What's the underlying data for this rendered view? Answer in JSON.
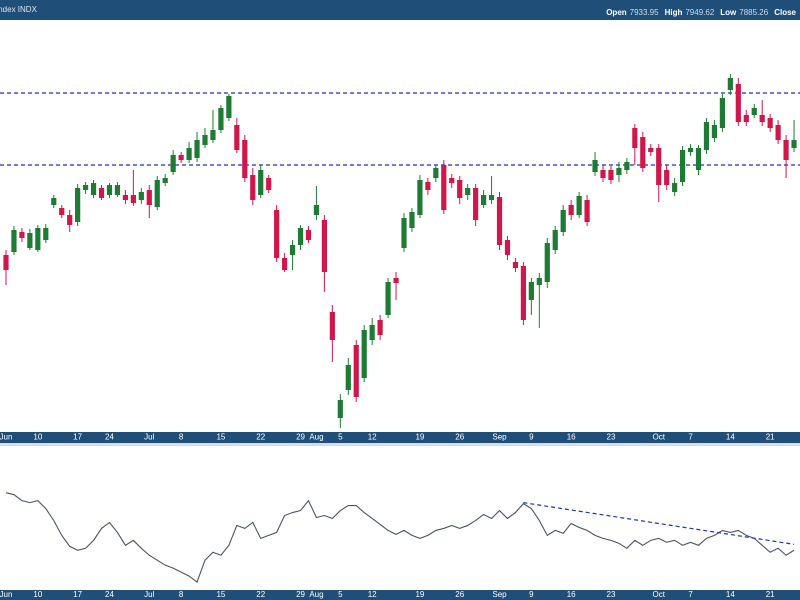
{
  "header": {
    "symbol": "Index INDX",
    "quote": [
      {
        "label": "Open",
        "value": 7933.95
      },
      {
        "label": "High",
        "value": 7949.62
      },
      {
        "label": "Low",
        "value": 7885.26
      },
      {
        "label": "Close"
      }
    ]
  },
  "chart_data": [
    {
      "type": "candlestick",
      "up_color": "#1e7b34",
      "down_color": "#d0174b",
      "line_color": "#1f2fbf",
      "categories": [
        "Jun",
        null,
        null,
        null,
        "10",
        null,
        null,
        null,
        null,
        "17",
        null,
        null,
        null,
        "24",
        null,
        null,
        null,
        null,
        "Jul",
        null,
        null,
        null,
        "8",
        null,
        null,
        null,
        null,
        "15",
        null,
        null,
        null,
        null,
        "22",
        null,
        null,
        null,
        null,
        "29",
        null,
        "Aug",
        null,
        null,
        "5",
        null,
        null,
        null,
        "12",
        null,
        null,
        null,
        null,
        null,
        "19",
        null,
        null,
        null,
        null,
        "26",
        null,
        null,
        null,
        null,
        "Sep",
        null,
        null,
        null,
        "9",
        null,
        null,
        null,
        null,
        "16",
        null,
        null,
        null,
        null,
        "23",
        null,
        null,
        null,
        null,
        null,
        "Oct",
        null,
        null,
        null,
        "7",
        null,
        null,
        null,
        null,
        "14",
        null,
        null,
        null,
        null,
        "21",
        null,
        null,
        null
      ],
      "open": [
        7495,
        7504,
        7564,
        7516,
        7510,
        7540,
        7645,
        7636,
        7615,
        7594,
        7690,
        7675,
        7696,
        7675,
        7675,
        7675,
        7675,
        7660,
        7690,
        7639,
        7711,
        7744,
        7795,
        7780,
        7786,
        7825,
        7840,
        7870,
        7906,
        7885,
        7840,
        7735,
        7675,
        7726,
        7630,
        7486,
        7495,
        7525,
        7570,
        7615,
        7600,
        7324,
        7006,
        7090,
        7225,
        7126,
        7240,
        7300,
        7315,
        7426,
        7516,
        7576,
        7615,
        7714,
        7726,
        7765,
        7726,
        7720,
        7675,
        7696,
        7645,
        7660,
        7669,
        7540,
        7474,
        7462,
        7360,
        7405,
        7414,
        7510,
        7564,
        7645,
        7615,
        7660,
        7744,
        7750,
        7750,
        7735,
        7750,
        7876,
        7849,
        7816,
        7816,
        7750,
        7684,
        7714,
        7804,
        7750,
        7810,
        7846,
        7876,
        7990,
        8008,
        7915,
        7915,
        7915,
        7906,
        7885,
        7840,
        7816
      ],
      "high": [
        7510,
        7582,
        7576,
        7573,
        7585,
        7588,
        7675,
        7645,
        7630,
        7708,
        7714,
        7720,
        7705,
        7711,
        7714,
        7690,
        7750,
        7696,
        7705,
        7732,
        7738,
        7810,
        7804,
        7834,
        7864,
        7876,
        7930,
        7945,
        7978,
        7906,
        7855,
        7756,
        7765,
        7735,
        7645,
        7501,
        7540,
        7585,
        7582,
        7702,
        7615,
        7345,
        7078,
        7186,
        7240,
        7285,
        7306,
        7315,
        7426,
        7444,
        7621,
        7636,
        7735,
        7726,
        7765,
        7780,
        7738,
        7732,
        7708,
        7708,
        7690,
        7732,
        7684,
        7552,
        7486,
        7474,
        7426,
        7441,
        7546,
        7582,
        7645,
        7660,
        7684,
        7675,
        7804,
        7765,
        7762,
        7774,
        7786,
        7888,
        7864,
        7828,
        7828,
        7765,
        7726,
        7822,
        7828,
        7825,
        7906,
        7900,
        7978,
        8038,
        8026,
        7930,
        7948,
        7960,
        7918,
        7900,
        7855,
        7900
      ],
      "low": [
        7405,
        7495,
        7534,
        7510,
        7504,
        7531,
        7636,
        7606,
        7564,
        7582,
        7678,
        7666,
        7660,
        7666,
        7669,
        7648,
        7642,
        7648,
        7606,
        7630,
        7702,
        7735,
        7771,
        7771,
        7774,
        7816,
        7831,
        7861,
        7897,
        7801,
        7714,
        7645,
        7666,
        7681,
        7474,
        7444,
        7450,
        7510,
        7531,
        7600,
        7384,
        7174,
        6976,
        7075,
        7054,
        7114,
        7225,
        7240,
        7306,
        7360,
        7504,
        7564,
        7606,
        7675,
        7714,
        7618,
        7696,
        7648,
        7660,
        7582,
        7636,
        7648,
        7510,
        7480,
        7444,
        7285,
        7315,
        7276,
        7396,
        7498,
        7552,
        7600,
        7606,
        7582,
        7732,
        7714,
        7708,
        7714,
        7738,
        7765,
        7744,
        7792,
        7654,
        7690,
        7672,
        7702,
        7792,
        7735,
        7798,
        7834,
        7864,
        7975,
        7882,
        7882,
        7906,
        7882,
        7864,
        7828,
        7726,
        7804
      ],
      "close": [
        7450,
        7570,
        7546,
        7561,
        7576,
        7576,
        7666,
        7615,
        7585,
        7696,
        7705,
        7711,
        7666,
        7705,
        7705,
        7660,
        7651,
        7684,
        7645,
        7720,
        7726,
        7795,
        7780,
        7816,
        7840,
        7855,
        7870,
        7936,
        7972,
        7810,
        7726,
        7660,
        7750,
        7690,
        7486,
        7450,
        7525,
        7576,
        7540,
        7645,
        7444,
        7240,
        7060,
        7165,
        7069,
        7270,
        7285,
        7255,
        7414,
        7411,
        7606,
        7624,
        7720,
        7690,
        7756,
        7630,
        7711,
        7666,
        7696,
        7600,
        7675,
        7675,
        7525,
        7495,
        7456,
        7300,
        7414,
        7426,
        7531,
        7570,
        7630,
        7615,
        7672,
        7594,
        7780,
        7726,
        7720,
        7756,
        7774,
        7816,
        7756,
        7804,
        7705,
        7705,
        7711,
        7810,
        7816,
        7816,
        7894,
        7885,
        7966,
        8026,
        7894,
        7894,
        7936,
        7894,
        7876,
        7840,
        7780,
        7840
      ],
      "reference_lines": [
        7981,
        7765
      ],
      "ylim": [
        6964,
        8200
      ]
    },
    {
      "type": "line",
      "color": "#4a5563",
      "trend_color": "#1f2fbf",
      "categories": [
        "Jun",
        null,
        null,
        null,
        "10",
        null,
        null,
        null,
        null,
        "17",
        null,
        null,
        null,
        "24",
        null,
        null,
        null,
        null,
        "Jul",
        null,
        null,
        null,
        "8",
        null,
        null,
        null,
        null,
        "15",
        null,
        null,
        null,
        null,
        "22",
        null,
        null,
        null,
        null,
        "29",
        null,
        "Aug",
        null,
        null,
        "5",
        null,
        null,
        null,
        "12",
        null,
        null,
        null,
        null,
        null,
        "19",
        null,
        null,
        null,
        null,
        "26",
        null,
        null,
        null,
        null,
        "Sep",
        null,
        null,
        null,
        "9",
        null,
        null,
        null,
        null,
        "16",
        null,
        null,
        null,
        null,
        "23",
        null,
        null,
        null,
        null,
        null,
        "Oct",
        null,
        null,
        null,
        "7",
        null,
        null,
        null,
        null,
        "14",
        null,
        null,
        null,
        null,
        "21",
        null,
        null,
        null
      ],
      "values": [
        98,
        96,
        90,
        88,
        90,
        82,
        70,
        55,
        44,
        40,
        42,
        50,
        62,
        68,
        58,
        45,
        50,
        42,
        35,
        30,
        25,
        22,
        18,
        14,
        8,
        30,
        38,
        35,
        45,
        65,
        62,
        68,
        52,
        55,
        58,
        75,
        78,
        80,
        90,
        73,
        75,
        72,
        80,
        85,
        85,
        78,
        72,
        66,
        60,
        56,
        60,
        55,
        52,
        55,
        60,
        62,
        65,
        62,
        65,
        70,
        76,
        72,
        80,
        72,
        78,
        87,
        82,
        70,
        55,
        60,
        57,
        67,
        63,
        60,
        55,
        52,
        50,
        47,
        42,
        50,
        45,
        50,
        52,
        48,
        50,
        45,
        48,
        45,
        52,
        55,
        60,
        58,
        60,
        55,
        52,
        45,
        38,
        42,
        35,
        40
      ],
      "trendline": {
        "x": [
          65,
          99
        ],
        "values": [
          88,
          46
        ]
      },
      "ylim": [
        0,
        145
      ]
    }
  ]
}
